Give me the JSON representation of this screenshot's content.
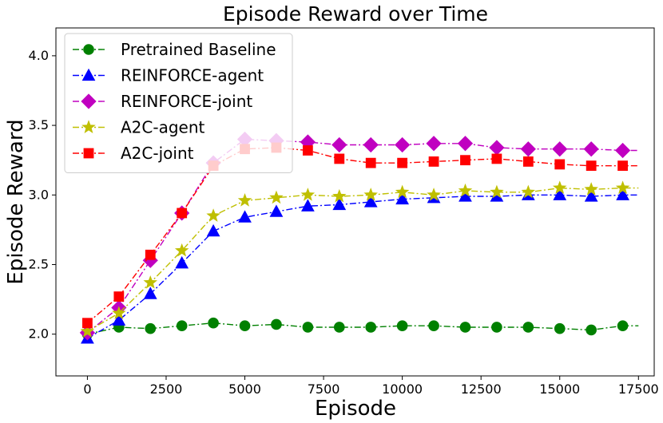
{
  "chart_data": {
    "type": "line",
    "title": "Episode Reward over Time",
    "xlabel": "Episode",
    "ylabel": "Episode Reward",
    "xlim": [
      -1000,
      18000
    ],
    "ylim": [
      1.7,
      4.2
    ],
    "xticks": [
      0,
      2500,
      5000,
      7500,
      10000,
      12500,
      15000,
      17500
    ],
    "xtick_labels": [
      "0",
      "2500",
      "5000",
      "7500",
      "10000",
      "12500",
      "15000",
      "17500"
    ],
    "yticks": [
      2.0,
      2.5,
      3.0,
      3.5,
      4.0
    ],
    "ytick_labels": [
      "2.0",
      "2.5",
      "3.0",
      "3.5",
      "4.0"
    ],
    "grid": false,
    "legend_position": "top-left",
    "x": [
      0,
      1000,
      2000,
      3000,
      4000,
      5000,
      6000,
      7000,
      8000,
      9000,
      10000,
      11000,
      12000,
      13000,
      14000,
      15000,
      16000,
      17000
    ],
    "series": [
      {
        "name": "Pretrained Baseline",
        "color": "#008000",
        "marker": "circle",
        "values": [
          2.0,
          2.05,
          2.04,
          2.06,
          2.08,
          2.06,
          2.07,
          2.05,
          2.05,
          2.05,
          2.06,
          2.06,
          2.05,
          2.05,
          2.05,
          2.04,
          2.03,
          2.06
        ]
      },
      {
        "name": "REINFORCE-agent",
        "color": "#0000ff",
        "marker": "triangle",
        "values": [
          1.97,
          2.1,
          2.29,
          2.51,
          2.74,
          2.84,
          2.88,
          2.92,
          2.93,
          2.95,
          2.97,
          2.98,
          2.99,
          2.99,
          3.0,
          3.0,
          2.99,
          3.0
        ]
      },
      {
        "name": "REINFORCE-joint",
        "color": "#c000c0",
        "marker": "diamond",
        "values": [
          2.01,
          2.19,
          2.53,
          2.87,
          3.23,
          3.4,
          3.39,
          3.38,
          3.36,
          3.36,
          3.36,
          3.37,
          3.37,
          3.34,
          3.33,
          3.33,
          3.33,
          3.32
        ]
      },
      {
        "name": "A2C-agent",
        "color": "#bfbf00",
        "marker": "star",
        "values": [
          2.02,
          2.15,
          2.37,
          2.6,
          2.85,
          2.96,
          2.98,
          3.0,
          2.99,
          3.0,
          3.02,
          3.0,
          3.03,
          3.02,
          3.02,
          3.05,
          3.04,
          3.05
        ]
      },
      {
        "name": "A2C-joint",
        "color": "#ff0000",
        "marker": "square",
        "values": [
          2.08,
          2.27,
          2.57,
          2.87,
          3.21,
          3.33,
          3.34,
          3.32,
          3.26,
          3.23,
          3.23,
          3.24,
          3.25,
          3.26,
          3.24,
          3.22,
          3.21,
          3.21
        ]
      }
    ]
  }
}
